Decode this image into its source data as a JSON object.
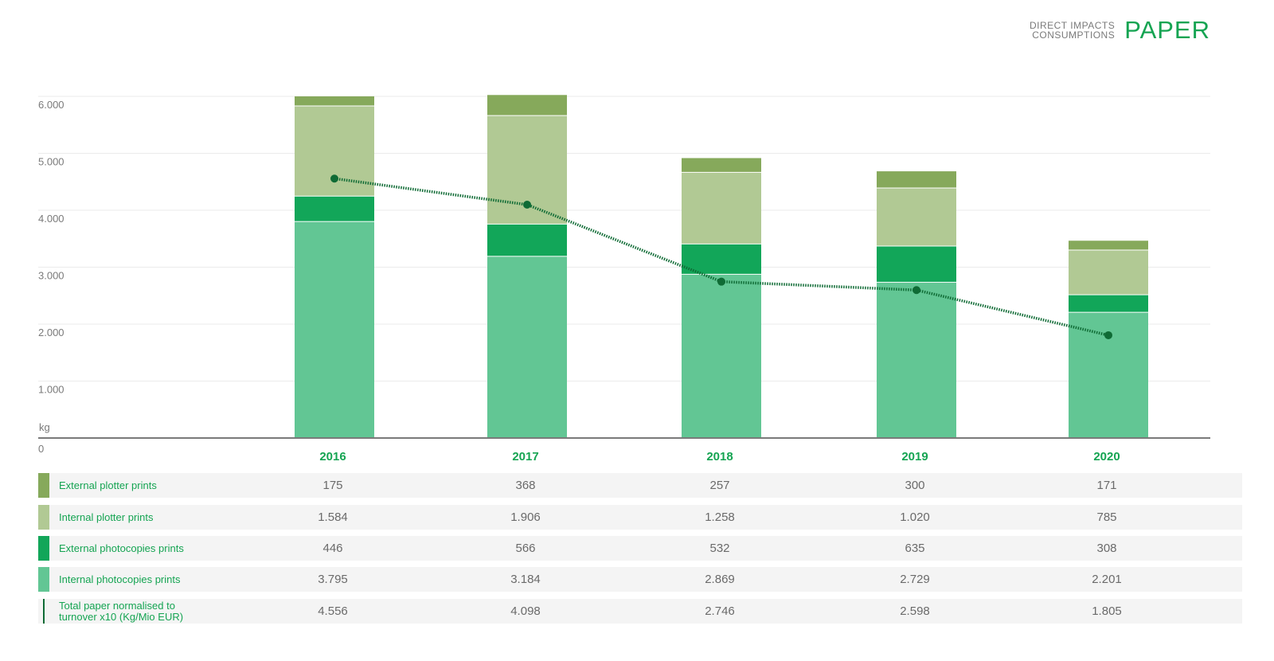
{
  "header": {
    "sub_line1": "DIRECT IMPACTS",
    "sub_line2": "CONSUMPTIONS",
    "title": "PAPER"
  },
  "colors": {
    "external_plotter": "#86a95b",
    "internal_plotter": "#b1c994",
    "external_photocopies": "#12a659",
    "internal_photocopies": "#62c694",
    "total_line": "#0f6b35",
    "accent_text": "#15a452"
  },
  "chart_data": {
    "type": "bar",
    "stacked": true,
    "categories": [
      "2016",
      "2017",
      "2018",
      "2019",
      "2020"
    ],
    "ylabel": "kg",
    "ylim": [
      0,
      6000
    ],
    "yticks": [
      "0",
      "1.000",
      "2.000",
      "3.000",
      "4.000",
      "5.000",
      "6.000"
    ],
    "grid": true,
    "series": [
      {
        "name": "Internal photocopies prints",
        "key": "internal_photocopies",
        "values": [
          3795,
          3184,
          2869,
          2729,
          2201
        ],
        "labels": [
          "3.795",
          "3.184",
          "2.869",
          "2.729",
          "2.201"
        ]
      },
      {
        "name": "External photocopies prints",
        "key": "external_photocopies",
        "values": [
          446,
          566,
          532,
          635,
          308
        ],
        "labels": [
          "446",
          "566",
          "532",
          "635",
          "308"
        ]
      },
      {
        "name": "Internal plotter prints",
        "key": "internal_plotter",
        "values": [
          1584,
          1906,
          1258,
          1020,
          785
        ],
        "labels": [
          "1.584",
          "1.906",
          "1.258",
          "1.020",
          "785"
        ]
      },
      {
        "name": "External plotter prints",
        "key": "external_plotter",
        "values": [
          175,
          368,
          257,
          300,
          171
        ],
        "labels": [
          "175",
          "368",
          "257",
          "300",
          "171"
        ]
      }
    ],
    "line": {
      "name": "Total paper normalised to turnover x10 (Kg/Mio EUR)",
      "values": [
        4556,
        4098,
        2746,
        2598,
        1805
      ],
      "labels": [
        "4.556",
        "4.098",
        "2.746",
        "2.598",
        "1.805"
      ]
    },
    "table_rows": [
      {
        "label": "External plotter prints",
        "key": "external_plotter",
        "labels": [
          "175",
          "368",
          "257",
          "300",
          "171"
        ]
      },
      {
        "label": "Internal plotter prints",
        "key": "internal_plotter",
        "labels": [
          "1.584",
          "1.906",
          "1.258",
          "1.020",
          "785"
        ]
      },
      {
        "label": "External photocopies prints",
        "key": "external_photocopies",
        "labels": [
          "446",
          "566",
          "532",
          "635",
          "308"
        ]
      },
      {
        "label": "Internal photocopies prints",
        "key": "internal_photocopies",
        "labels": [
          "3.795",
          "3.184",
          "2.869",
          "2.729",
          "2.201"
        ]
      },
      {
        "label_line1": "Total paper normalised to",
        "label_line2": "turnover x10 (Kg/Mio EUR)",
        "key": "total_line",
        "labels": [
          "4.556",
          "4.098",
          "2.746",
          "2.598",
          "1.805"
        ]
      }
    ]
  }
}
